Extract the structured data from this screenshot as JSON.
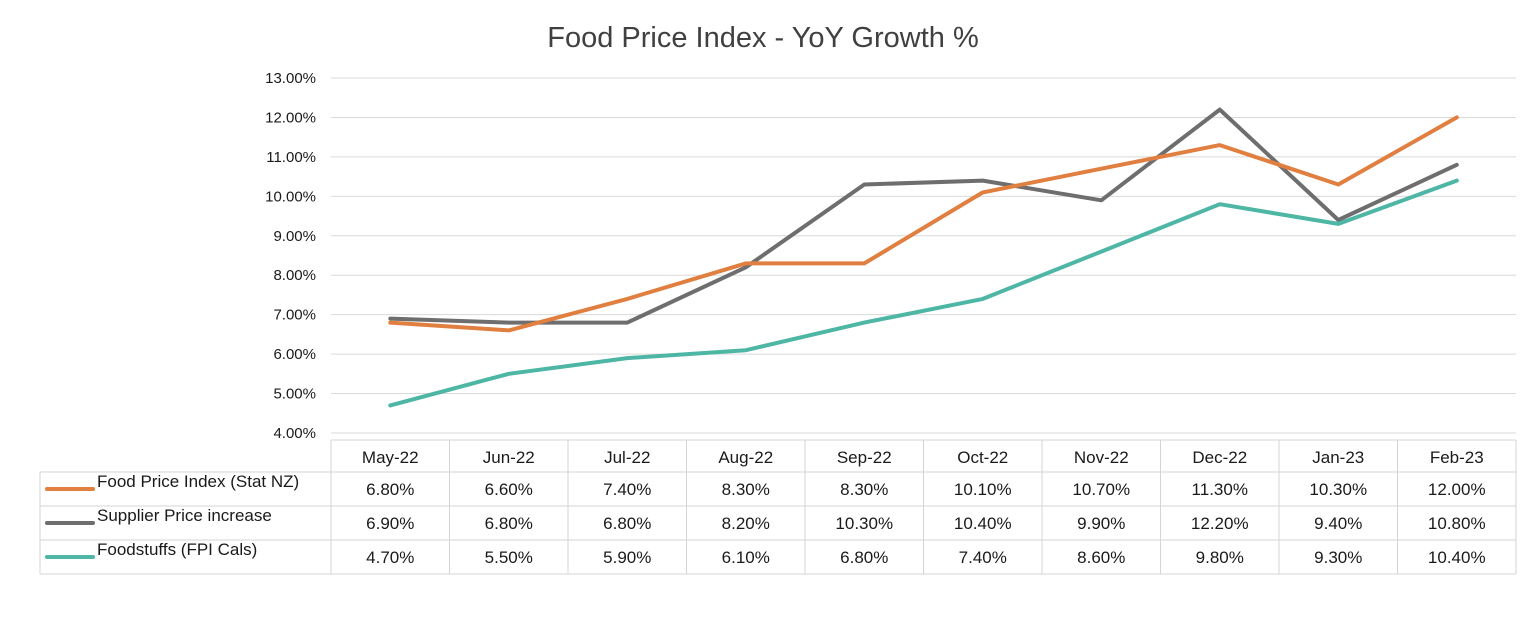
{
  "chart_data": {
    "type": "line",
    "title": "Food Price Index - YoY Growth %",
    "categories": [
      "May-22",
      "Jun-22",
      "Jul-22",
      "Aug-22",
      "Sep-22",
      "Oct-22",
      "Nov-22",
      "Dec-22",
      "Jan-23",
      "Feb-23"
    ],
    "ylim": [
      4,
      13
    ],
    "y_ticks": [
      "4.00%",
      "5.00%",
      "6.00%",
      "7.00%",
      "8.00%",
      "9.00%",
      "10.00%",
      "11.00%",
      "12.00%",
      "13.00%"
    ],
    "grid": true,
    "legend": "data-table",
    "series": [
      {
        "name": "Food Price Index (Stat NZ)",
        "color": "#e07f3f",
        "values": [
          6.8,
          6.6,
          7.4,
          8.3,
          8.3,
          10.1,
          10.7,
          11.3,
          10.3,
          12.0
        ],
        "labels": [
          "6.80%",
          "6.60%",
          "7.40%",
          "8.30%",
          "8.30%",
          "10.10%",
          "10.70%",
          "11.30%",
          "10.30%",
          "12.00%"
        ]
      },
      {
        "name": "Supplier Price increase",
        "color": "#6e6e6e",
        "values": [
          6.9,
          6.8,
          6.8,
          8.2,
          10.3,
          10.4,
          9.9,
          12.2,
          9.4,
          10.8
        ],
        "labels": [
          "6.90%",
          "6.80%",
          "6.80%",
          "8.20%",
          "10.30%",
          "10.40%",
          "9.90%",
          "12.20%",
          "9.40%",
          "10.80%"
        ]
      },
      {
        "name": "Foodstuffs (FPI Cals)",
        "color": "#4db6a5",
        "values": [
          4.7,
          5.5,
          5.9,
          6.1,
          6.8,
          7.4,
          8.6,
          9.8,
          9.3,
          10.4
        ],
        "labels": [
          "4.70%",
          "5.50%",
          "5.90%",
          "6.10%",
          "6.80%",
          "7.40%",
          "8.60%",
          "9.80%",
          "9.30%",
          "10.40%"
        ]
      }
    ]
  }
}
